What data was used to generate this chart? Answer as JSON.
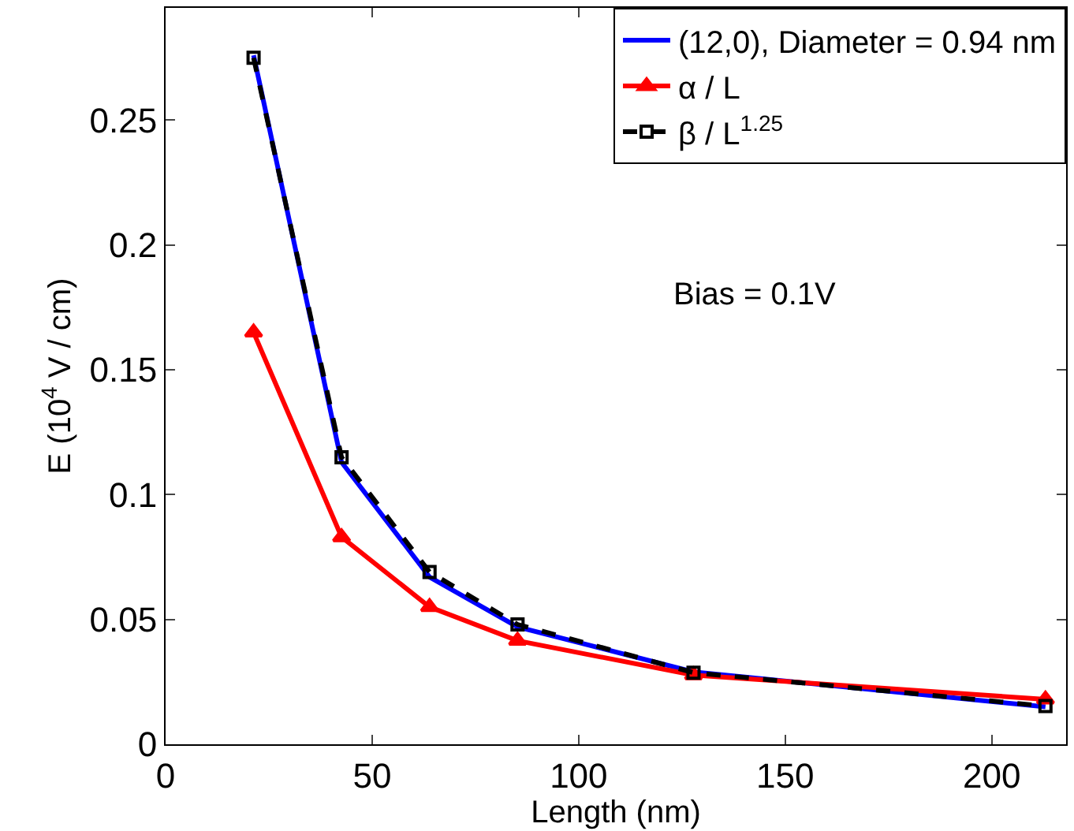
{
  "chart_data": {
    "type": "line",
    "xlabel": "Length (nm)",
    "ylabel": "E (10$^{4}$ V / cm)",
    "x": [
      21.3,
      42.6,
      63.9,
      85.2,
      127.8,
      213
    ],
    "series": [
      {
        "name": "(12,0), Diameter = 0.94 nm",
        "color": "#0000ff",
        "values": [
          0.276,
          0.113,
          0.067,
          0.047,
          0.029,
          0.015
        ],
        "marker": "none",
        "line_style": "solid"
      },
      {
        "name": "α / L",
        "color": "#ff0000",
        "values": [
          0.165,
          0.083,
          0.055,
          0.0415,
          0.0277,
          0.018
        ],
        "marker": "triangle",
        "line_style": "solid"
      },
      {
        "name": "β / L$^{1.25}$",
        "color": "#000000",
        "values": [
          0.275,
          0.115,
          0.069,
          0.048,
          0.0287,
          0.0153
        ],
        "marker": "square",
        "line_style": "dashed"
      }
    ],
    "xlim": [
      0,
      218
    ],
    "xticks": [
      0,
      50,
      100,
      150,
      200
    ],
    "ylim": [
      0,
      0.295
    ],
    "yticks": [
      0,
      0.05,
      0.1,
      0.15,
      0.2,
      0.25
    ],
    "annotations": [
      "Bias = 0.1V"
    ],
    "legend": "top right"
  }
}
